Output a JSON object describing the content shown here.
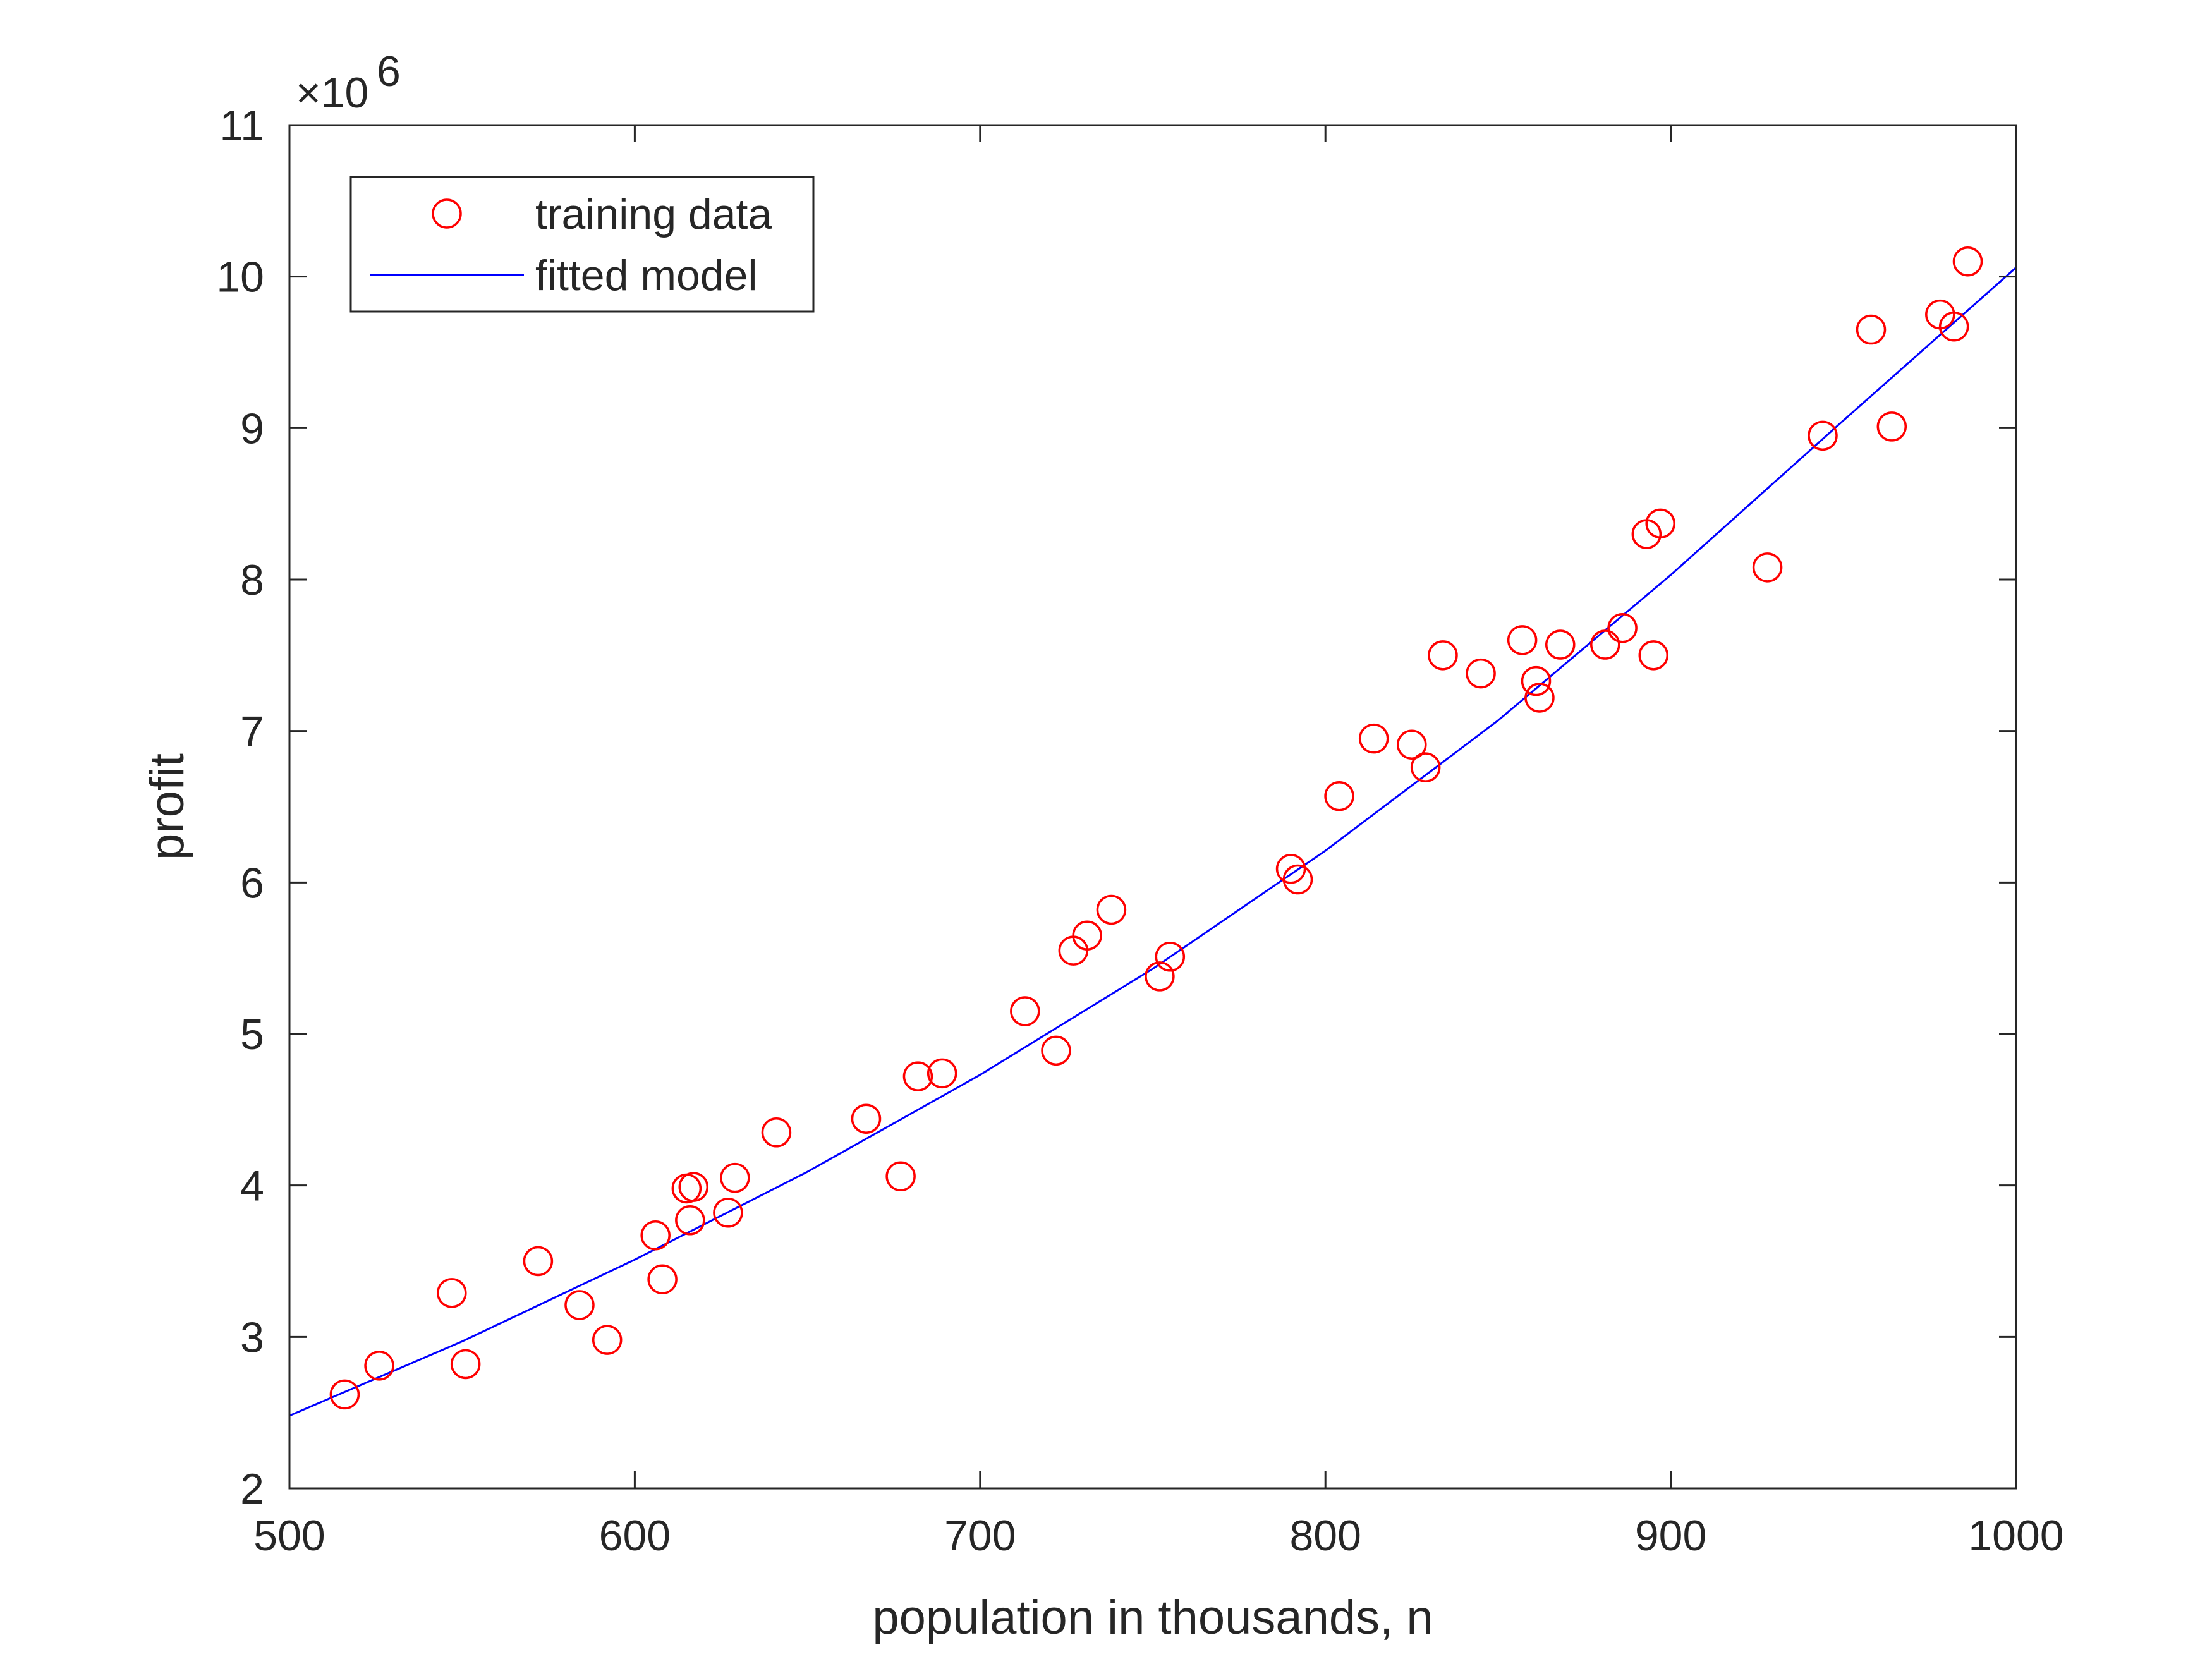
{
  "chart_data": {
    "type": "scatter",
    "title": "",
    "xlabel": "population in thousands, n",
    "ylabel": "profit",
    "xlim": [
      500,
      1000
    ],
    "ylim": [
      2,
      11
    ],
    "y_exponent_label": "×10",
    "y_exponent_power": "6",
    "y_scale": 1000000,
    "x_ticks": [
      500,
      600,
      700,
      800,
      900,
      1000
    ],
    "y_ticks": [
      2,
      3,
      4,
      5,
      6,
      7,
      8,
      9,
      10,
      11
    ],
    "x_tick_labels": [
      "500",
      "600",
      "700",
      "800",
      "900",
      "1000"
    ],
    "y_tick_labels": [
      "2",
      "3",
      "4",
      "5",
      "6",
      "7",
      "8",
      "9",
      "10",
      "11"
    ],
    "grid": false,
    "legend_position": "top-left",
    "legend": [
      {
        "label": "training data",
        "marker": "circle",
        "color": "#ff0000"
      },
      {
        "label": "fitted model",
        "marker": "line",
        "color": "#0000ff"
      }
    ],
    "series": [
      {
        "name": "training data",
        "kind": "scatter",
        "color": "#ff0000",
        "points": [
          [
            516,
            2.62
          ],
          [
            526,
            2.81
          ],
          [
            547,
            3.29
          ],
          [
            551,
            2.82
          ],
          [
            572,
            3.5
          ],
          [
            584,
            3.21
          ],
          [
            592,
            2.98
          ],
          [
            606,
            3.67
          ],
          [
            608,
            3.38
          ],
          [
            615,
            3.98
          ],
          [
            616,
            3.77
          ],
          [
            617,
            3.99
          ],
          [
            627,
            3.82
          ],
          [
            629,
            4.05
          ],
          [
            641,
            4.35
          ],
          [
            667,
            4.44
          ],
          [
            677,
            4.06
          ],
          [
            682,
            4.72
          ],
          [
            689,
            4.74
          ],
          [
            713,
            5.15
          ],
          [
            722,
            4.89
          ],
          [
            727,
            5.55
          ],
          [
            731,
            5.65
          ],
          [
            738,
            5.82
          ],
          [
            752,
            5.38
          ],
          [
            755,
            5.51
          ],
          [
            790,
            6.09
          ],
          [
            792,
            6.02
          ],
          [
            804,
            6.57
          ],
          [
            814,
            6.95
          ],
          [
            825,
            6.91
          ],
          [
            829,
            6.76
          ],
          [
            834,
            7.5
          ],
          [
            845,
            7.38
          ],
          [
            857,
            7.6
          ],
          [
            861,
            7.33
          ],
          [
            862,
            7.22
          ],
          [
            868,
            7.57
          ],
          [
            881,
            7.57
          ],
          [
            886,
            7.68
          ],
          [
            893,
            8.3
          ],
          [
            895,
            7.5
          ],
          [
            897,
            8.37
          ],
          [
            928,
            8.08
          ],
          [
            944,
            8.95
          ],
          [
            958,
            9.65
          ],
          [
            964,
            9.01
          ],
          [
            978,
            9.75
          ],
          [
            982,
            9.67
          ],
          [
            986,
            10.1
          ]
        ]
      },
      {
        "name": "fitted model",
        "kind": "line",
        "color": "#0000ff",
        "points": [
          [
            500,
            2.48
          ],
          [
            550,
            2.97
          ],
          [
            600,
            3.51
          ],
          [
            650,
            4.09
          ],
          [
            700,
            4.73
          ],
          [
            750,
            5.43
          ],
          [
            800,
            6.21
          ],
          [
            850,
            7.07
          ],
          [
            900,
            8.03
          ],
          [
            950,
            9.05
          ],
          [
            1000,
            10.06
          ]
        ]
      }
    ]
  }
}
